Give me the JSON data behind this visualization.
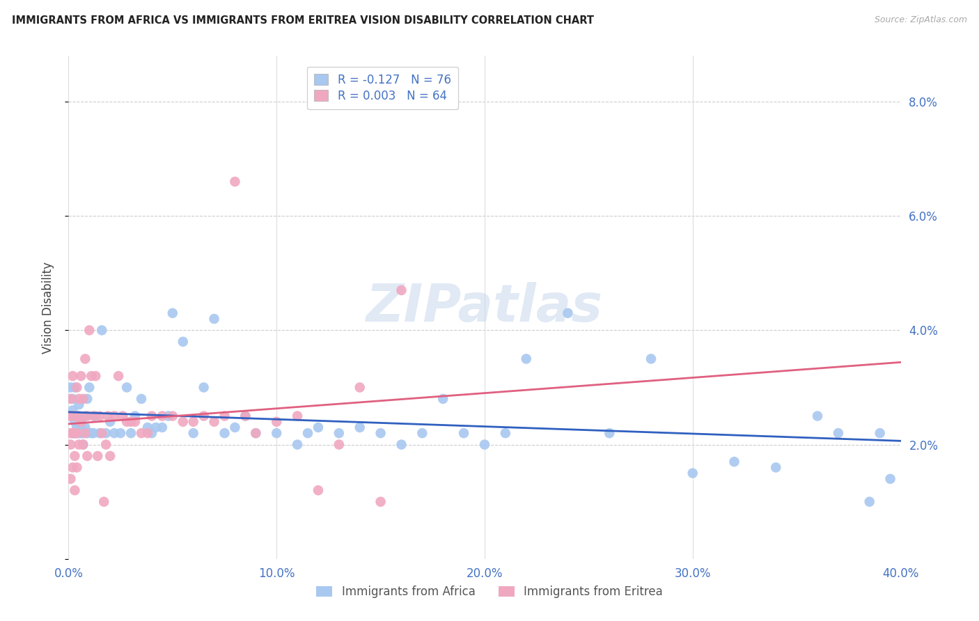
{
  "title": "IMMIGRANTS FROM AFRICA VS IMMIGRANTS FROM ERITREA VISION DISABILITY CORRELATION CHART",
  "source": "Source: ZipAtlas.com",
  "ylabel": "Vision Disability",
  "xlim": [
    0.0,
    0.4
  ],
  "ylim": [
    0.0,
    0.088
  ],
  "yticks": [
    0.0,
    0.02,
    0.04,
    0.06,
    0.08
  ],
  "ytick_labels": [
    "",
    "2.0%",
    "4.0%",
    "6.0%",
    "8.0%"
  ],
  "xticks": [
    0.0,
    0.1,
    0.2,
    0.3,
    0.4
  ],
  "xtick_labels": [
    "0.0%",
    "10.0%",
    "20.0%",
    "30.0%",
    "40.0%"
  ],
  "africa_color": "#a8c8f0",
  "eritrea_color": "#f0a8c0",
  "africa_line_color": "#3060c0",
  "eritrea_line_color": "#e06080",
  "legend_africa_label": "R = -0.127   N = 76",
  "legend_eritrea_label": "R = 0.003   N = 64",
  "legend_africa_series": "Immigrants from Africa",
  "legend_eritrea_series": "Immigrants from Eritrea",
  "watermark": "ZIPatlas",
  "africa_x": [
    0.001,
    0.001,
    0.002,
    0.002,
    0.002,
    0.003,
    0.003,
    0.003,
    0.003,
    0.004,
    0.004,
    0.005,
    0.005,
    0.005,
    0.006,
    0.006,
    0.006,
    0.007,
    0.007,
    0.008,
    0.008,
    0.009,
    0.009,
    0.01,
    0.011,
    0.012,
    0.013,
    0.015,
    0.016,
    0.018,
    0.02,
    0.022,
    0.025,
    0.028,
    0.03,
    0.032,
    0.035,
    0.038,
    0.04,
    0.042,
    0.045,
    0.048,
    0.05,
    0.055,
    0.06,
    0.065,
    0.07,
    0.075,
    0.08,
    0.085,
    0.09,
    0.1,
    0.11,
    0.115,
    0.12,
    0.13,
    0.14,
    0.15,
    0.16,
    0.17,
    0.18,
    0.19,
    0.2,
    0.21,
    0.22,
    0.24,
    0.26,
    0.28,
    0.3,
    0.32,
    0.34,
    0.36,
    0.37,
    0.385,
    0.39,
    0.395
  ],
  "africa_y": [
    0.03,
    0.025,
    0.028,
    0.022,
    0.026,
    0.025,
    0.022,
    0.024,
    0.03,
    0.023,
    0.022,
    0.025,
    0.022,
    0.027,
    0.022,
    0.024,
    0.023,
    0.022,
    0.02,
    0.025,
    0.023,
    0.022,
    0.028,
    0.03,
    0.022,
    0.022,
    0.025,
    0.022,
    0.04,
    0.022,
    0.024,
    0.022,
    0.022,
    0.03,
    0.022,
    0.025,
    0.028,
    0.023,
    0.022,
    0.023,
    0.023,
    0.025,
    0.043,
    0.038,
    0.022,
    0.03,
    0.042,
    0.022,
    0.023,
    0.025,
    0.022,
    0.022,
    0.02,
    0.022,
    0.023,
    0.022,
    0.023,
    0.022,
    0.02,
    0.022,
    0.028,
    0.022,
    0.02,
    0.022,
    0.035,
    0.043,
    0.022,
    0.035,
    0.015,
    0.017,
    0.016,
    0.025,
    0.022,
    0.01,
    0.022,
    0.014
  ],
  "eritrea_x": [
    0.001,
    0.001,
    0.001,
    0.001,
    0.001,
    0.002,
    0.002,
    0.002,
    0.002,
    0.003,
    0.003,
    0.003,
    0.003,
    0.004,
    0.004,
    0.004,
    0.005,
    0.005,
    0.005,
    0.006,
    0.006,
    0.007,
    0.007,
    0.008,
    0.008,
    0.009,
    0.009,
    0.01,
    0.011,
    0.012,
    0.013,
    0.014,
    0.015,
    0.016,
    0.017,
    0.018,
    0.019,
    0.02,
    0.022,
    0.024,
    0.026,
    0.028,
    0.03,
    0.032,
    0.035,
    0.038,
    0.04,
    0.045,
    0.05,
    0.055,
    0.06,
    0.065,
    0.07,
    0.075,
    0.08,
    0.085,
    0.09,
    0.1,
    0.11,
    0.12,
    0.13,
    0.14,
    0.15,
    0.16
  ],
  "eritrea_y": [
    0.022,
    0.025,
    0.028,
    0.02,
    0.014,
    0.032,
    0.022,
    0.025,
    0.016,
    0.025,
    0.022,
    0.018,
    0.012,
    0.03,
    0.022,
    0.016,
    0.025,
    0.02,
    0.028,
    0.032,
    0.024,
    0.028,
    0.02,
    0.035,
    0.022,
    0.018,
    0.025,
    0.04,
    0.032,
    0.025,
    0.032,
    0.018,
    0.025,
    0.022,
    0.01,
    0.02,
    0.025,
    0.018,
    0.025,
    0.032,
    0.025,
    0.024,
    0.024,
    0.024,
    0.022,
    0.022,
    0.025,
    0.025,
    0.025,
    0.024,
    0.024,
    0.025,
    0.024,
    0.025,
    0.066,
    0.025,
    0.022,
    0.024,
    0.025,
    0.012,
    0.02,
    0.03,
    0.01,
    0.047
  ]
}
